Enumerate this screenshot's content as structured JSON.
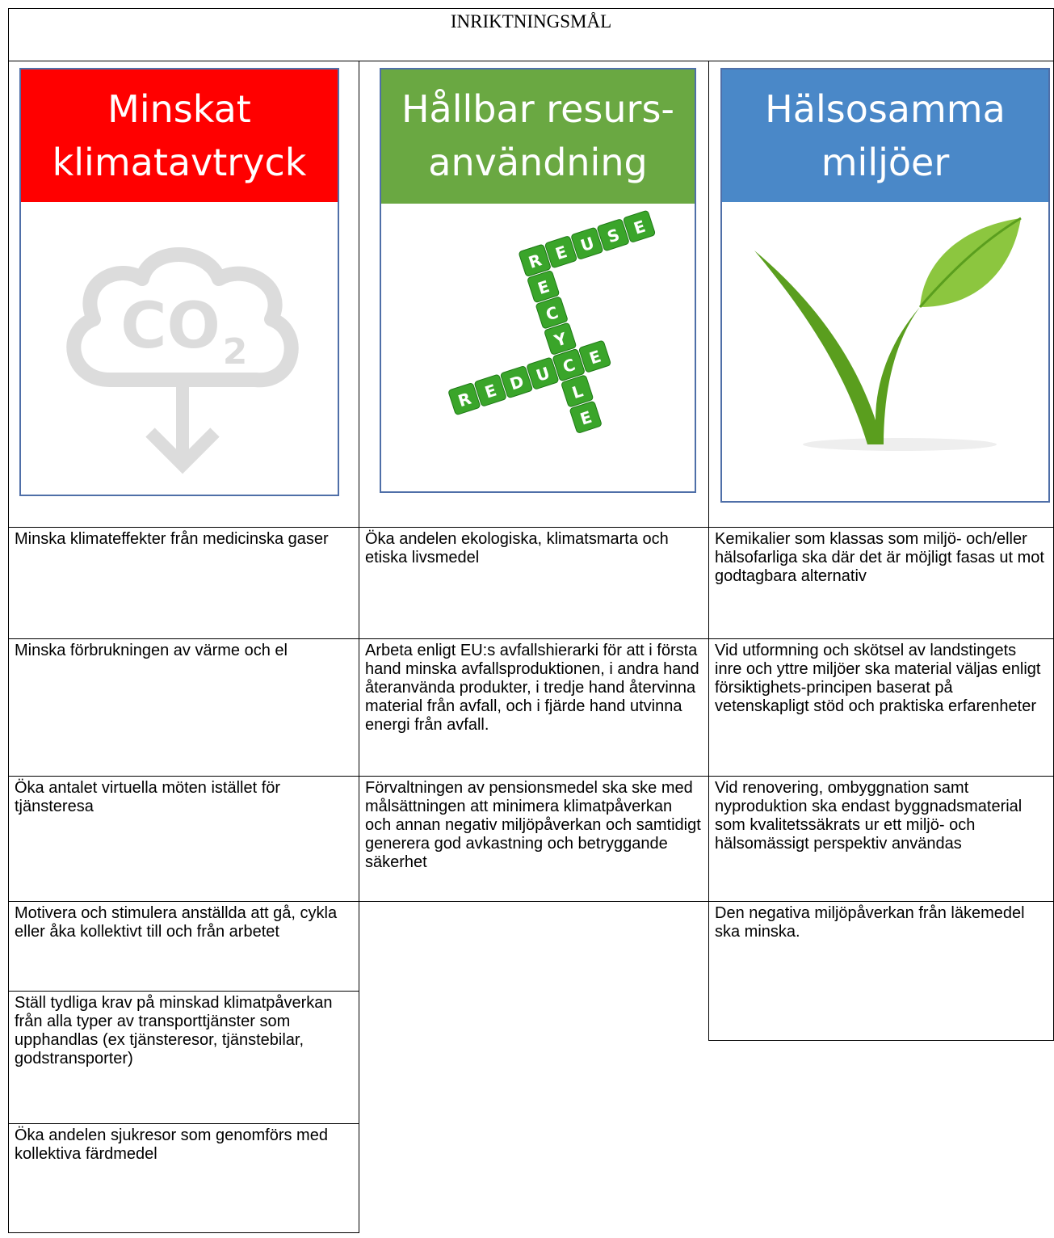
{
  "title": "INRIKTNINGSMÅL",
  "columns": [
    {
      "heading": [
        "Minskat",
        "klimatavtryck"
      ],
      "image_text": [
        "CO",
        "2"
      ],
      "items": [
        "Minska klimateffekter från medicinska gaser",
        "Minska förbrukningen av värme och el",
        "Öka antalet virtuella möten istället för tjänsteresa",
        "Motivera och stimulera anställda att gå, cykla eller åka kollektivt till och från arbetet",
        "Ställ tydliga krav på minskad klimatpåverkan från alla typer av transporttjänster som upphandlas (ex tjänsteresor, tjänstebilar, godstransporter)",
        "Öka andelen sjukresor som genomförs med kollektiva färdmedel"
      ]
    },
    {
      "heading": [
        "Hållbar resurs-",
        "användning"
      ],
      "image_text": [
        "REUSE",
        "RECYCLE",
        "REDUCE"
      ],
      "items": [
        "Öka andelen ekologiska, klimatsmarta och etiska livsmedel",
        "Arbeta enligt EU:s avfallshierarki för att i första hand minska avfallsproduktionen, i andra hand återanvända produkter, i tredje hand återvinna material från avfall, och i fjärde hand utvinna energi från avfall.",
        "Förvaltningen av pensionsmedel ska ske med målsättningen att minimera klimatpåverkan och annan negativ miljöpåverkan och samtidigt generera god avkastning och betryggande säkerhet"
      ]
    },
    {
      "heading": [
        "Hälsosamma",
        "miljöer"
      ],
      "items": [
        "Kemikalier som klassas som miljö- och/eller hälsofarliga ska där det är möjligt fasas ut mot godtagbara alternativ",
        "Vid utformning och skötsel av landstingets inre och yttre miljöer ska material väljas enligt försiktighets-principen baserat på vetenskapligt stöd och praktiska erfarenheter",
        "Vid renovering, ombyggnation samt nyproduktion ska endast byggnadsmaterial som kvalitetssäkrats ur ett miljö- och hälsomässigt perspektiv användas",
        "Den negativa miljöpåverkan från läkemedel ska minska."
      ]
    }
  ]
}
